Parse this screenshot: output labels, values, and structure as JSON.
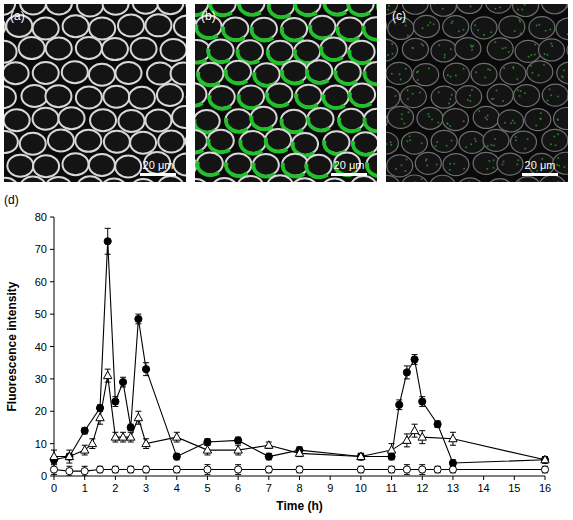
{
  "images": [
    {
      "label": "(a)",
      "scale_bar": "20 μm"
    },
    {
      "label": "(b)",
      "scale_bar": "20 μm"
    },
    {
      "label": "(c)",
      "scale_bar": "20 μm"
    }
  ],
  "chart_data": {
    "type": "line",
    "panel_label": "(d)",
    "x_label": "Time (h)",
    "y_label": "Fluorescence intensity",
    "xlim": [
      0,
      16
    ],
    "xticks": [
      0,
      1,
      2,
      3,
      4,
      5,
      6,
      7,
      8,
      9,
      10,
      11,
      12,
      13,
      14,
      15,
      16
    ],
    "ylim": [
      0,
      80
    ],
    "yticks": [
      0,
      10,
      20,
      30,
      40,
      50,
      60,
      70,
      80
    ],
    "grid": false,
    "series": [
      {
        "color": "#000000",
        "marker": "filled-circle",
        "x": [
          0,
          0.5,
          1,
          1.5,
          1.75,
          2,
          2.25,
          2.5,
          2.75,
          3,
          4,
          5,
          6,
          7,
          8,
          10,
          11,
          11.25,
          11.5,
          11.75,
          12,
          12.5,
          13,
          16
        ],
        "values": [
          5,
          6,
          14,
          21,
          72.5,
          23,
          29,
          15,
          48.5,
          33,
          6,
          10.5,
          11,
          6,
          8,
          6,
          6,
          22,
          32,
          36,
          23,
          16,
          4,
          5
        ],
        "errors": [
          1,
          1,
          1,
          1,
          4,
          1.5,
          1.5,
          1,
          1.5,
          2,
          1,
          1,
          1,
          1,
          1,
          1,
          1,
          1.5,
          2,
          1.5,
          1.5,
          1,
          1,
          1
        ]
      },
      {
        "color": "#000000",
        "marker": "open-triangle",
        "x": [
          0,
          0.5,
          1,
          1.25,
          1.5,
          1.75,
          2,
          2.25,
          2.5,
          2.75,
          3,
          4,
          5,
          6,
          7,
          8,
          10,
          11,
          11.5,
          11.75,
          12,
          13,
          16
        ],
        "values": [
          6,
          6,
          8,
          10,
          18,
          31,
          12,
          12,
          12,
          18,
          10,
          12,
          8,
          8,
          9.5,
          7,
          6,
          8,
          11,
          14,
          12,
          11.5,
          5
        ],
        "errors": [
          2,
          2,
          1.5,
          1.5,
          2,
          2,
          1.5,
          1.5,
          1.5,
          2,
          1.5,
          1.5,
          1.5,
          1.5,
          1,
          1,
          1,
          2,
          2,
          2,
          2,
          2,
          1
        ]
      },
      {
        "color": "#000000",
        "marker": "open-circle",
        "x": [
          0,
          0.5,
          1,
          1.5,
          2,
          2.5,
          3,
          4,
          5,
          6,
          7,
          8,
          10,
          11,
          11.5,
          12,
          12.5,
          13,
          16
        ],
        "values": [
          2,
          1.5,
          1.5,
          2,
          2,
          2,
          2,
          2,
          2,
          2,
          2,
          2,
          2,
          2,
          2,
          2,
          2,
          2,
          2
        ],
        "errors": [
          1.5,
          1.5,
          1.5,
          1,
          1,
          1,
          1,
          1,
          1.5,
          1.5,
          1,
          1,
          1,
          1,
          1.5,
          1.5,
          1,
          1,
          1
        ]
      }
    ]
  }
}
